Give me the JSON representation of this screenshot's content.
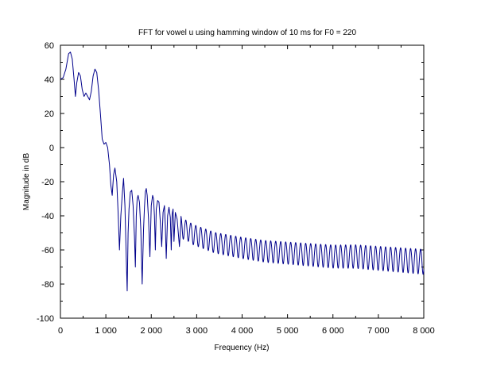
{
  "chart_data": {
    "type": "line",
    "title": "FFT for vowel u using hamming window of 10 ms for F0 = 220",
    "xlabel": "Frequency (Hz)",
    "ylabel": "Magnitude in dB",
    "xlim": [
      0,
      8000
    ],
    "ylim": [
      -100,
      60
    ],
    "xticks": [
      0,
      1000,
      2000,
      3000,
      4000,
      5000,
      6000,
      7000,
      8000
    ],
    "xtick_labels": [
      "0",
      "1 000",
      "2 000",
      "3 000",
      "4 000",
      "5 000",
      "6 000",
      "7 000",
      "8 000"
    ],
    "yticks": [
      -100,
      -80,
      -60,
      -40,
      -20,
      0,
      20,
      40,
      60
    ],
    "ytick_labels": [
      "-100",
      "-80",
      "-60",
      "-40",
      "-20",
      "0",
      "20",
      "40",
      "60"
    ],
    "grid": false,
    "line_color": "#00008b",
    "series": [
      {
        "x": [
          0,
          60,
          120,
          180,
          220,
          260,
          300,
          330,
          360,
          400,
          440,
          480,
          520,
          560,
          600,
          640,
          680,
          720,
          760,
          800,
          840,
          880,
          920,
          960,
          1000,
          1040,
          1080,
          1110,
          1140,
          1170,
          1200,
          1240,
          1270,
          1300,
          1330,
          1360,
          1390,
          1420,
          1450,
          1470,
          1490,
          1510,
          1540,
          1570,
          1600,
          1630,
          1650,
          1670,
          1690,
          1710,
          1740,
          1770,
          1800,
          1830,
          1850,
          1870,
          1890,
          1910,
          1940,
          1970,
          2000,
          2030,
          2050,
          2070,
          2090,
          2110,
          2140,
          2170,
          2200,
          2230,
          2260,
          2290,
          2310,
          2330,
          2360,
          2390,
          2420,
          2440,
          2460,
          2480,
          2500,
          2530,
          2570,
          2620,
          2650,
          2700,
          2800,
          2900,
          3000,
          3200,
          3400,
          3600,
          3800,
          4000,
          4500,
          5000,
          5500,
          6000,
          6500,
          7000,
          7500,
          8000
        ],
        "y": [
          40,
          41,
          46,
          55,
          56,
          52,
          40,
          30,
          38,
          44,
          42,
          34,
          30,
          32,
          30,
          28,
          33,
          42,
          46,
          44,
          34,
          20,
          5,
          2,
          3,
          0,
          -10,
          -22,
          -28,
          -16,
          -12,
          -20,
          -38,
          -60,
          -40,
          -28,
          -18,
          -34,
          -65,
          -84,
          -50,
          -36,
          -26,
          -25,
          -34,
          -52,
          -70,
          -40,
          -30,
          -28,
          -32,
          -48,
          -80,
          -48,
          -35,
          -26,
          -24,
          -28,
          -42,
          -64,
          -34,
          -28,
          -30,
          -40,
          -60,
          -36,
          -31,
          -32,
          -44,
          -58,
          -38,
          -34,
          -46,
          -65,
          -40,
          -35,
          -41,
          -60,
          -39,
          -36,
          -55,
          -38,
          -42,
          -58,
          -45,
          -47,
          -48,
          -50,
          -51,
          -53,
          -55,
          -56,
          -57,
          -58,
          -60,
          -61,
          -62,
          -63,
          -63,
          -64,
          -65,
          -66
        ]
      }
    ]
  }
}
